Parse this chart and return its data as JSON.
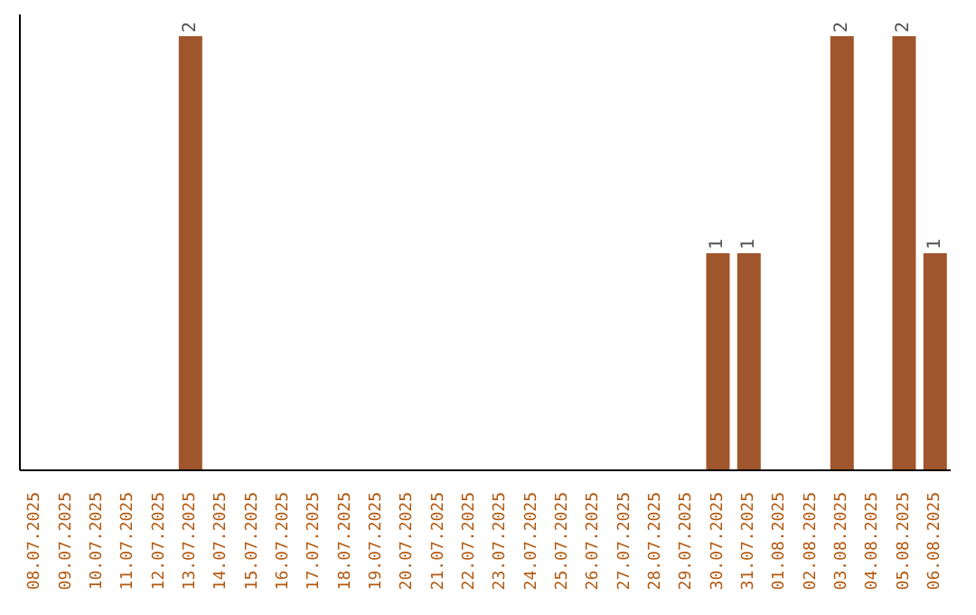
{
  "chart_data": {
    "type": "bar",
    "categories": [
      "08.07.2025",
      "09.07.2025",
      "10.07.2025",
      "11.07.2025",
      "12.07.2025",
      "13.07.2025",
      "14.07.2025",
      "15.07.2025",
      "16.07.2025",
      "17.07.2025",
      "18.07.2025",
      "19.07.2025",
      "20.07.2025",
      "21.07.2025",
      "22.07.2025",
      "23.07.2025",
      "24.07.2025",
      "25.07.2025",
      "26.07.2025",
      "27.07.2025",
      "28.07.2025",
      "29.07.2025",
      "30.07.2025",
      "31.07.2025",
      "01.08.2025",
      "02.08.2025",
      "03.08.2025",
      "04.08.2025",
      "05.08.2025",
      "06.08.2025"
    ],
    "values": [
      0,
      0,
      0,
      0,
      0,
      2,
      0,
      0,
      0,
      0,
      0,
      0,
      0,
      0,
      0,
      0,
      0,
      0,
      0,
      0,
      0,
      0,
      1,
      1,
      0,
      0,
      2,
      0,
      2,
      1
    ],
    "value_labels": [
      null,
      null,
      null,
      null,
      null,
      "2",
      null,
      null,
      null,
      null,
      null,
      null,
      null,
      null,
      null,
      null,
      null,
      null,
      null,
      null,
      null,
      null,
      "1",
      "1",
      null,
      null,
      "2",
      null,
      "2",
      "1"
    ],
    "color": "#a0562c"
  }
}
